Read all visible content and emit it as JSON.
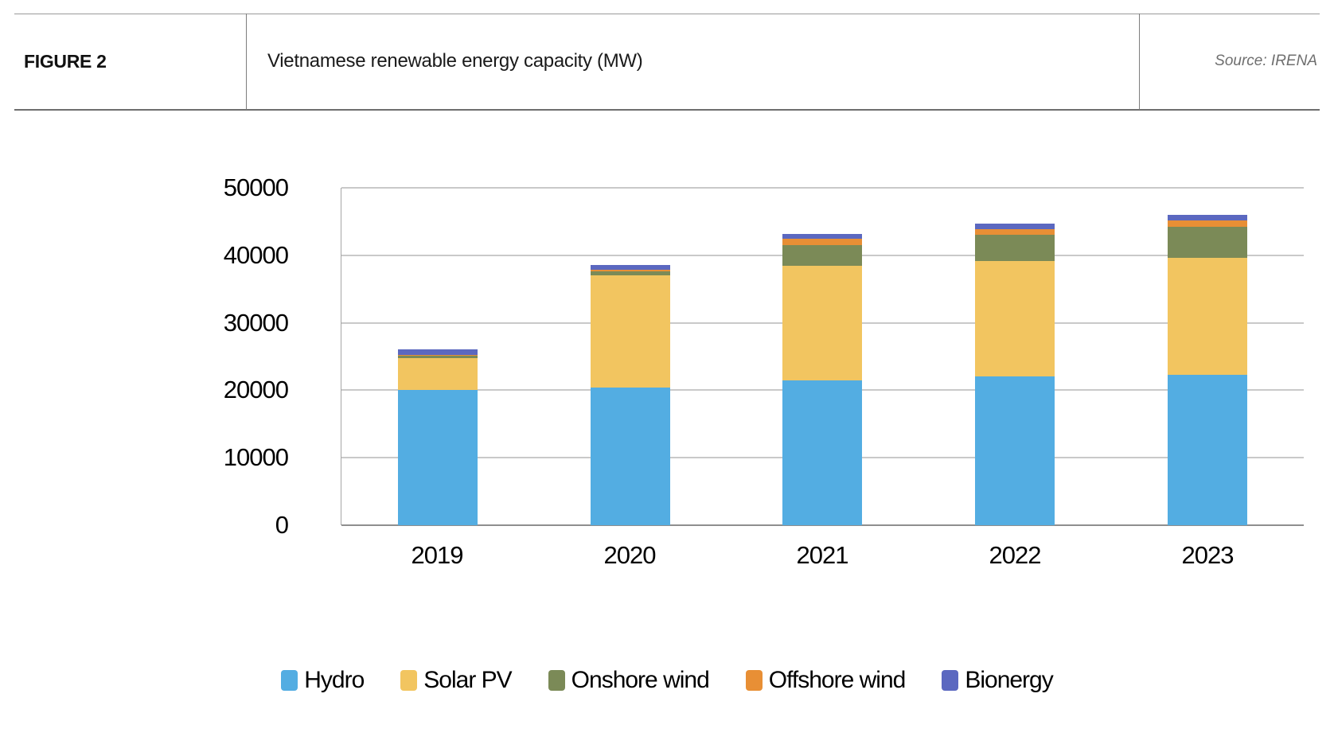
{
  "header": {
    "figure_label": "FIGURE 2",
    "title": "Vietnamese renewable energy capacity (MW)",
    "source": "Source: IRENA"
  },
  "chart_data": {
    "type": "bar",
    "stacked": true,
    "title": "Vietnamese renewable energy capacity (MW)",
    "categories": [
      "2019",
      "2020",
      "2021",
      "2022",
      "2023"
    ],
    "series": [
      {
        "name": "Hydro",
        "color": "#53ADE2",
        "values": [
          20100,
          20400,
          21500,
          22100,
          22300
        ]
      },
      {
        "name": "Solar PV",
        "color": "#F2C560",
        "values": [
          4700,
          16600,
          16900,
          17000,
          17300
        ]
      },
      {
        "name": "Onshore wind",
        "color": "#7B8A57",
        "values": [
          300,
          600,
          3100,
          3900,
          4600
        ]
      },
      {
        "name": "Offshore wind",
        "color": "#E88F35",
        "values": [
          100,
          200,
          900,
          900,
          1000
        ]
      },
      {
        "name": "Bionergy",
        "color": "#5B68C0",
        "values": [
          900,
          800,
          800,
          800,
          800
        ]
      }
    ],
    "totals": [
      26100,
      38600,
      43200,
      44700,
      46000
    ],
    "xlabel": "",
    "ylabel": "",
    "ylim": [
      0,
      50000
    ],
    "yticks": [
      0,
      10000,
      20000,
      30000,
      40000,
      50000
    ],
    "grid": true,
    "legend_position": "bottom",
    "gridline_color": "#c9c9c9",
    "baseline_color": "#8f8f8f"
  }
}
